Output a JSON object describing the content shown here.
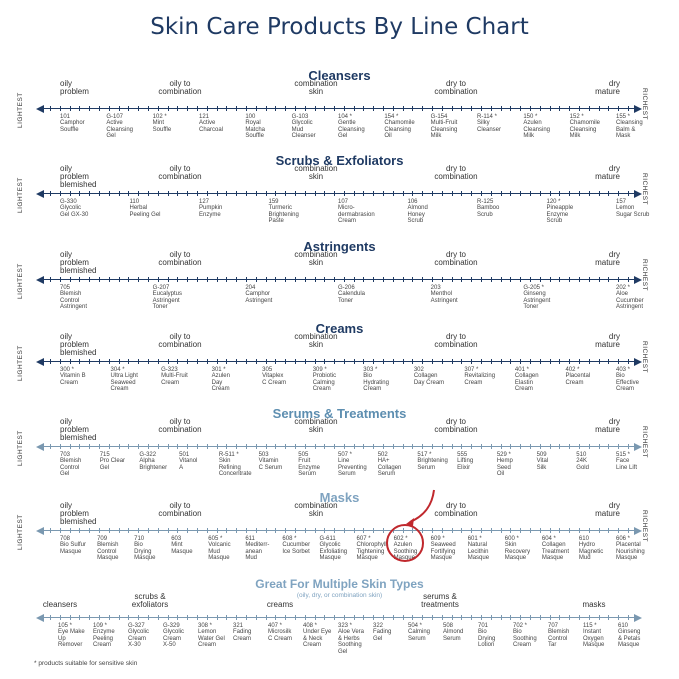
{
  "title": "Skin Care Products By Line Chart",
  "side_left": "LIGHTEST",
  "side_right": "RICHEST",
  "colors": {
    "navy": "#1f3a63",
    "light_blue": "#7fa3c0",
    "teal_blue": "#5d8eb0",
    "highlight_red": "#c0282d"
  },
  "sections": [
    {
      "title": "Cleansers",
      "zones": [
        "oily\nproblem",
        "oily to\ncombination",
        "combination\nskin",
        "dry to\ncombination",
        "dry\nmature"
      ],
      "products": [
        "101\nCamphor\nSouffle",
        "G-107\nActive\nCleansing\nGel",
        "102 *\nMint\nSouffle",
        "121\nActive\nCharcoal",
        "100\nRoyal\nMatcha\nSouffle",
        "G-103\nGlycolic\nMud\nCleanser",
        "104 *\nGentle\nCleansing\nGel",
        "154 *\nChamomile\nCleansing\nOil",
        "G-154\nMulti-Fruit\nCleansing\nMilk",
        "R-114 *\nSilky\nCleanser",
        "150 *\nAzulen\nCleansing\nMilk",
        "152 *\nChamomile\nCleansing\nMilk",
        "155 *\nCleansing\nBalm &\nMask"
      ]
    },
    {
      "title": "Scrubs & Exfoliators",
      "zones": [
        "oily\nproblem\nblemished",
        "oily to\ncombination",
        "combination\nskin",
        "dry to\ncombination",
        "dry\nmature"
      ],
      "products": [
        "G-330\nGlycolic\nGel GX-30",
        "110\nHerbal\nPeeling Gel",
        "127\nPumpkin\nEnzyme",
        "159\nTurmeric\nBrightening\nPaste",
        "107\nMicro-\ndermabrasion\nCream",
        "106\nAlmond\nHoney\nScrub",
        "R-125\nBamboo\nScrub",
        "120 *\nPineapple\nEnzyme\nScrub",
        "157\nLemon\nSugar Scrub"
      ]
    },
    {
      "title": "Astringents",
      "zones": [
        "oily\nproblem\nblemished",
        "oily to\ncombination",
        "combination\nskin",
        "dry to\ncombination",
        "dry\nmature"
      ],
      "products": [
        "705\nBlemish\nControl\nAstringent",
        "G-207\nEucalyptus\nAstringent\nToner",
        "204\nCamphor\nAstringent",
        "G-206\nCalendula\nToner",
        "203\nMenthol\nAstringent",
        "G-205 *\nGinseng\nAstringent\nToner",
        "202 *\nAloe\nCucumber\nAstringent"
      ]
    },
    {
      "title": "Creams",
      "zones": [
        "oily\nproblem\nblemished",
        "oily to\ncombination",
        "combination\nskin",
        "dry to\ncombination",
        "dry\nmature"
      ],
      "products": [
        "300 *\nVitamin B\nCream",
        "304 *\nUltra Light\nSeaweed\nCream",
        "G-323\nMulti-Fruit\nCream",
        "301 *\nAzulen\nDay\nCream",
        "305\nVitaplex\nC Cream",
        "309 *\nProbiotic\nCalming\nCream",
        "303 *\nBio\nHydrating\nCream",
        "302\nCollagen\nDay Cream",
        "307 *\nRevitalizing\nCream",
        "401 *\nCollagen\nElastin\nCream",
        "402 *\nPlacental\nCream",
        "403 *\nBio\nEffective\nCream"
      ]
    },
    {
      "title": "Serums & Treatments",
      "zones": [
        "oily\nproblem\nblemished",
        "oily to\ncombination",
        "combination\nskin",
        "dry to\ncombination",
        "dry\nmature"
      ],
      "products": [
        "703\nBlemish\nControl\nGel",
        "715\nPro Clear\nGel",
        "G-322\nAlpha\nBrightener",
        "501\nVitanol\nA",
        "R-511 *\nSkin\nRefining\nConcentrate",
        "503\nVitamin\nC Serum",
        "505\nFruit\nEnzyme\nSerum",
        "507 *\nLine\nPreventing\nSerum",
        "502\nHA+\nCollagen\nSerum",
        "517 *\nBrightening\nSerum",
        "555\nLifting\nElixir",
        "529 *\nHemp\nSeed\nOil",
        "509\nVital\nSilk",
        "510\n24K\nGold",
        "515 *\nFace\nLine Lift"
      ]
    },
    {
      "title": "Masks",
      "zones": [
        "oily\nproblem\nblemished",
        "oily to\ncombination",
        "combination\nskin",
        "dry to\ncombination",
        "dry\nmature"
      ],
      "products": [
        "708\nBio Sulfur\nMasque",
        "709\nBlemish\nControl\nMasque",
        "710\nBio\nDrying\nMasque",
        "603\nMint\nMasque",
        "605 *\nVolcanic\nMud\nMasque",
        "611\nMediterr-\nanean\nMud",
        "608 *\nCucumber\nIce Sorbet",
        "G-611\nGlycolic\nExfoliating\nMasque",
        "607 *\nChlorophyll\nTightening\nMasque",
        "602 *\nAzulen\nSoothing\nMasque",
        "609 *\nSeaweed\nFortifying\nMasque",
        "601 *\nNatural\nLecithin\nMasque",
        "600 *\nSkin\nRecovery\nMasque",
        "604 *\nCollagen\nTreatment\nMasque",
        "610\nHydro\nMagnetic\nMud",
        "606 *\nPlacental\nNourishing\nMasque"
      ]
    }
  ],
  "multi": {
    "title": "Great For Multiple Skin Types",
    "subtitle": "(oily, dry, or combination skin)",
    "zones": [
      "cleansers",
      "scrubs &\nexfoliators",
      "creams",
      "serums &\ntreatments",
      "masks"
    ],
    "products": [
      "105 *\nEye Make\nUp\nRemover",
      "109 *\nEnzyme\nPeeling\nCream",
      "G-327\nGlycolic\nCream\nX-30",
      "G-329\nGlycolic\nCream\nX-50",
      "308 *\nLemon\nWater Gel\nCream",
      "321\nFading\nCream",
      "407 *\nMicrosilk\nC Cream",
      "408 *\nUnder Eye\n& Neck\nCream",
      "323 *\nAloe Vera\n& Herbs\nSoothing\nGel",
      "322\nFading\nGel",
      "504 *\nCalming\nSerum",
      "508\nAlmond\nSerum",
      "701\nBio\nDrying\nLotion",
      "702 *\nBio\nSoothing\nCream",
      "707\nBlemish\nControl\nTar",
      "115 *\nInstant\nOxygen\nMasque",
      "610\nGinseng\n& Petals\nMasque"
    ]
  },
  "footnote": "* products suitable for sensitive skin"
}
